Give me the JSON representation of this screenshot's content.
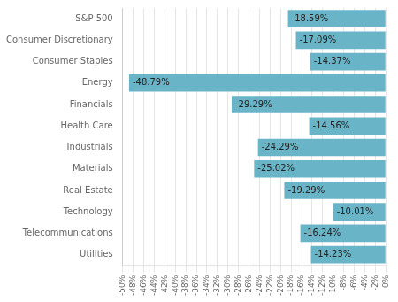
{
  "chart_data": {
    "type": "bar",
    "orientation": "horizontal",
    "categories": [
      "S&P 500",
      "Consumer Discretionary",
      "Consumer Staples",
      "Energy",
      "Financials",
      "Health Care",
      "Industrials",
      "Materials",
      "Real Estate",
      "Technology",
      "Telecommunications",
      "Utilities"
    ],
    "values": [
      -18.59,
      -17.09,
      -14.37,
      -48.79,
      -29.29,
      -14.56,
      -24.29,
      -25.02,
      -19.29,
      -10.01,
      -16.24,
      -14.23
    ],
    "value_labels": [
      "-18.59%",
      "-17.09%",
      "-14.37%",
      "-48.79%",
      "-29.29%",
      "-14.56%",
      "-24.29%",
      "-25.02%",
      "-19.29%",
      "-10.01%",
      "-16.24%",
      "-14.23%"
    ],
    "data_labels": true,
    "color": "#6ab4c8",
    "xlim": [
      -50,
      0
    ],
    "xticks": [
      {
        "value": -50,
        "label": "-50%"
      },
      {
        "value": -48,
        "label": "-48%"
      },
      {
        "value": -46,
        "label": "-46%"
      },
      {
        "value": -44,
        "label": "-44%"
      },
      {
        "value": -42,
        "label": "-42%"
      },
      {
        "value": -40,
        "label": "-40%"
      },
      {
        "value": -38,
        "label": "-38%"
      },
      {
        "value": -36,
        "label": "-36%"
      },
      {
        "value": -34,
        "label": "-34%"
      },
      {
        "value": -32,
        "label": "-32%"
      },
      {
        "value": -30,
        "label": "-30%"
      },
      {
        "value": -28,
        "label": "-28%"
      },
      {
        "value": -26,
        "label": "-26%"
      },
      {
        "value": -24,
        "label": "-24%"
      },
      {
        "value": -22,
        "label": "-22%"
      },
      {
        "value": -20,
        "label": "-20%"
      },
      {
        "value": -18,
        "label": "-18%"
      },
      {
        "value": -16,
        "label": "-16%"
      },
      {
        "value": -14,
        "label": "-14%"
      },
      {
        "value": -12,
        "label": "-12%"
      },
      {
        "value": -10,
        "label": "-10%"
      },
      {
        "value": -8,
        "label": "-8%"
      },
      {
        "value": -6,
        "label": "-6%"
      },
      {
        "value": -4,
        "label": "-4%"
      },
      {
        "value": -2,
        "label": "-2%"
      },
      {
        "value": 0,
        "label": "0%"
      }
    ],
    "grid": true
  }
}
